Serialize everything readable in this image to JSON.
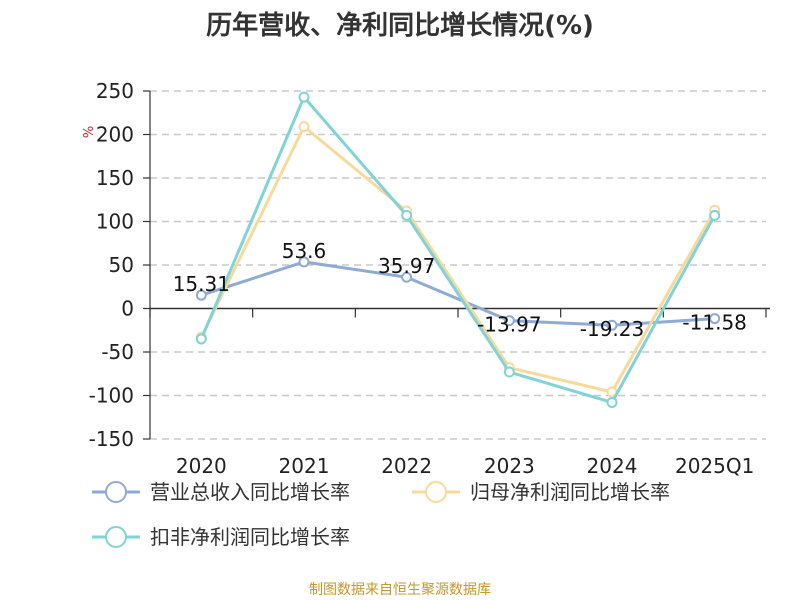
{
  "chart_data": {
    "type": "line",
    "title": "历年营收、净利同比增长情况(%)",
    "unit_label": "%",
    "categories": [
      "2020",
      "2021",
      "2022",
      "2023",
      "2024",
      "2025Q1"
    ],
    "ylim": [
      -150,
      250
    ],
    "yticks": [
      250,
      200,
      150,
      100,
      50,
      0,
      -50,
      -100,
      -150
    ],
    "grid": true,
    "legend_position": "bottom-left",
    "series": [
      {
        "name": "营业总收入同比增长率",
        "color": "#8eaad6",
        "values": [
          15.31,
          53.6,
          35.97,
          -13.97,
          -19.23,
          -11.58
        ],
        "labels": [
          "15.31",
          "53.6",
          "35.97",
          "-13.97",
          "-19.23",
          "-11.58"
        ]
      },
      {
        "name": "归母净利润同比增长率",
        "color": "#f9d99a",
        "values": [
          -33,
          209,
          112,
          -68,
          -96,
          113
        ]
      },
      {
        "name": "扣非净利润同比增长率",
        "color": "#80d3d7",
        "values": [
          -35,
          243,
          107,
          -73,
          -108,
          107
        ]
      }
    ]
  },
  "source": "制图数据来自恒生聚源数据库"
}
